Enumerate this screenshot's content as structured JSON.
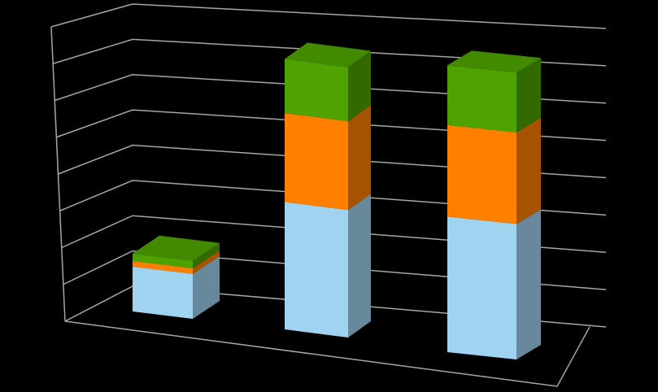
{
  "chart_data": {
    "type": "bar",
    "stacked": true,
    "three_d": true,
    "categories": [
      null,
      null,
      null
    ],
    "series": [
      {
        "color": "#9fd3ef",
        "values": [
          1.2,
          3.3,
          3.4
        ]
      },
      {
        "color": "#ff8000",
        "values": [
          0.15,
          2.3,
          2.3
        ]
      },
      {
        "color": "#4ea300",
        "values": [
          0.2,
          1.4,
          1.5
        ]
      }
    ],
    "ylim": [
      0,
      8
    ],
    "yticks": [
      0,
      1,
      2,
      3,
      4,
      5,
      6,
      7,
      8
    ],
    "grid": true
  }
}
